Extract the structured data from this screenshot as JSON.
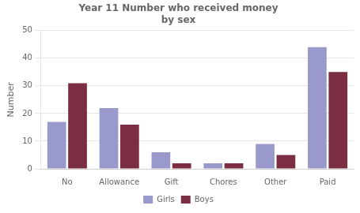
{
  "chart_data": {
    "type": "bar",
    "title": "Year 11 Number who received money\nby sex",
    "categories": [
      "No",
      "Allowance",
      "Gift",
      "Chores",
      "Other",
      "Paid"
    ],
    "series": [
      {
        "name": "Girls",
        "color": "#9999CC",
        "values": [
          17,
          22,
          6,
          2,
          9,
          44
        ]
      },
      {
        "name": "Boys",
        "color": "#7B2D42",
        "values": [
          31,
          16,
          2,
          2,
          5,
          35
        ]
      }
    ],
    "ylabel": "Number",
    "ylim": [
      0,
      50
    ],
    "yticks": [
      0,
      10,
      20,
      30,
      40,
      50
    ],
    "grid": "y",
    "legend": "bottom"
  }
}
